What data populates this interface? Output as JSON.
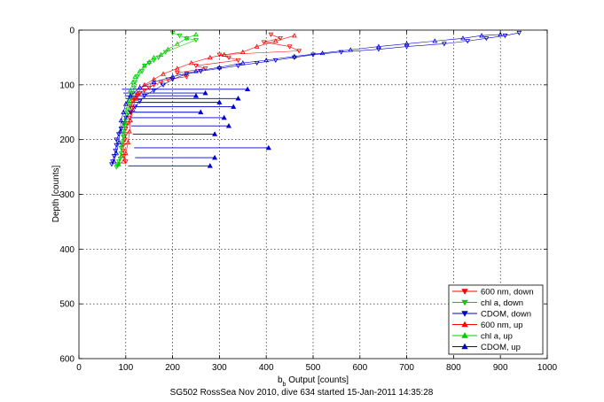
{
  "chart_data": {
    "type": "scatter",
    "xlabel_main": "b",
    "xlabel_sub": "b",
    "xlabel_rest": " Output [counts]",
    "ylabel": "Depth [counts]",
    "caption": "SG502 RossSea Nov 2010, dive 634 started 15-Jan-2011 14:35:28",
    "xlim": [
      0,
      1000
    ],
    "ylim": [
      0,
      600
    ],
    "y_reversed": true,
    "grid": true,
    "legend_position": "bottom-right",
    "x_ticks": [
      "0",
      "100",
      "200",
      "300",
      "400",
      "500",
      "600",
      "700",
      "800",
      "900",
      "1000"
    ],
    "y_ticks": [
      "0",
      "100",
      "200",
      "300",
      "400",
      "500",
      "600"
    ],
    "series": [
      {
        "name": "600 nm, down",
        "color": "#ff0000",
        "marker": "triangle-down",
        "x": [
          410,
          430,
          395,
          450,
          470,
          300,
          320,
          340,
          250,
          270,
          210,
          230,
          190,
          175,
          160,
          150,
          140,
          130,
          125,
          120,
          115,
          110,
          112,
          108,
          105,
          100,
          100,
          98,
          95,
          95,
          96,
          100
        ],
        "y": [
          8,
          15,
          22,
          30,
          38,
          45,
          50,
          55,
          65,
          70,
          78,
          85,
          90,
          95,
          100,
          105,
          110,
          115,
          120,
          125,
          130,
          140,
          150,
          160,
          170,
          180,
          190,
          200,
          210,
          220,
          230,
          240
        ]
      },
      {
        "name": "chl a, down",
        "color": "#00cc00",
        "marker": "triangle-down",
        "x": [
          200,
          215,
          230,
          250,
          185,
          170,
          160,
          150,
          140,
          135,
          125,
          120,
          118,
          115,
          110,
          108,
          105,
          102,
          100,
          98,
          95,
          95,
          92,
          90,
          90,
          88,
          85,
          85,
          82,
          80
        ],
        "y": [
          5,
          10,
          15,
          18,
          40,
          50,
          55,
          60,
          65,
          75,
          85,
          95,
          105,
          115,
          125,
          135,
          145,
          155,
          165,
          175,
          185,
          195,
          205,
          215,
          225,
          235,
          240,
          245,
          248,
          250
        ]
      },
      {
        "name": "CDOM, down",
        "color": "#0000cc",
        "marker": "triangle-down",
        "x": [
          940,
          910,
          870,
          830,
          780,
          700,
          640,
          560,
          500,
          460,
          420,
          380,
          340,
          300,
          260,
          230,
          200,
          180,
          160,
          140,
          130,
          120,
          110,
          100,
          95,
          90,
          85,
          80,
          80,
          78,
          75,
          72,
          70
        ],
        "y": [
          5,
          10,
          15,
          20,
          25,
          30,
          35,
          40,
          45,
          50,
          55,
          60,
          65,
          70,
          75,
          80,
          90,
          100,
          110,
          120,
          130,
          140,
          150,
          160,
          170,
          180,
          190,
          200,
          210,
          220,
          230,
          240,
          245
        ]
      },
      {
        "name": "600 nm, up",
        "color": "#ff0000",
        "marker": "triangle-up",
        "x": [
          95,
          100,
          105,
          108,
          110,
          115,
          120,
          125,
          140,
          160,
          180,
          210,
          240,
          280,
          310,
          350,
          380,
          420,
          460
        ],
        "y": [
          240,
          225,
          205,
          185,
          165,
          145,
          125,
          115,
          100,
          90,
          80,
          70,
          60,
          50,
          45,
          40,
          30,
          20,
          10
        ]
      },
      {
        "name": "chl a, up",
        "color": "#00cc00",
        "marker": "triangle-up",
        "x": [
          85,
          90,
          92,
          95,
          98,
          100,
          105,
          110,
          115,
          120,
          130,
          140,
          150,
          160,
          175,
          190,
          210,
          230,
          250
        ],
        "y": [
          245,
          230,
          210,
          190,
          170,
          150,
          130,
          110,
          95,
          85,
          75,
          65,
          58,
          50,
          45,
          35,
          25,
          15,
          8
        ]
      },
      {
        "name": "CDOM, up",
        "color": "#0000cc",
        "marker": "triangle-up",
        "x": [
          75,
          80,
          85,
          88,
          90,
          95,
          100,
          110,
          130,
          160,
          200,
          250,
          300,
          350,
          400,
          460,
          520,
          580,
          640,
          700,
          760,
          820,
          860,
          900
        ],
        "y": [
          240,
          225,
          205,
          185,
          165,
          150,
          135,
          120,
          105,
          95,
          85,
          75,
          68,
          60,
          55,
          48,
          42,
          36,
          30,
          25,
          20,
          15,
          10,
          8
        ]
      }
    ],
    "spikes": {
      "color": "#0000cc",
      "base_x": [
        92,
        95,
        98,
        100,
        103,
        106,
        108,
        110,
        112,
        115,
        118,
        120,
        105
      ],
      "tip_x": [
        360,
        270,
        250,
        340,
        300,
        330,
        260,
        310,
        320,
        290,
        405,
        290,
        280
      ],
      "y": [
        108,
        115,
        120,
        125,
        132,
        140,
        150,
        160,
        175,
        190,
        215,
        233,
        248
      ]
    }
  }
}
